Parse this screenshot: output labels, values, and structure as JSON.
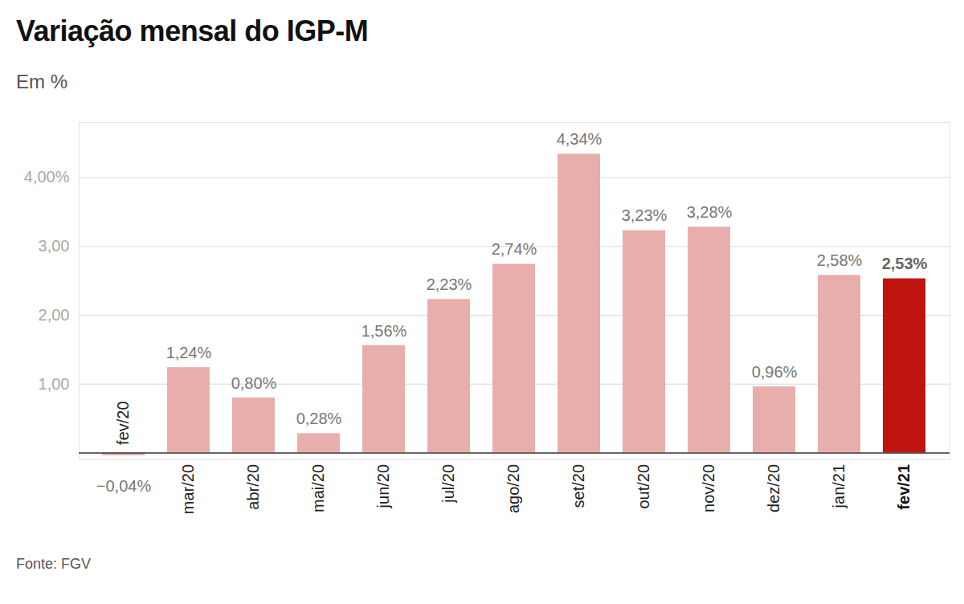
{
  "chart_data": {
    "type": "bar",
    "title": "Variação mensal do IGP-M",
    "subtitle": "Em %",
    "caption": "Fonte: FGV",
    "categories": [
      "fev/20",
      "mar/20",
      "abr/20",
      "mai/20",
      "jun/20",
      "jul/20",
      "ago/20",
      "set/20",
      "out/20",
      "nov/20",
      "dez/20",
      "jan/21",
      "fev/21"
    ],
    "values": [
      -0.04,
      1.24,
      0.8,
      0.28,
      1.56,
      2.23,
      2.74,
      4.34,
      3.23,
      3.28,
      0.96,
      2.58,
      2.53
    ],
    "value_labels": [
      "−0,04%",
      "1,24%",
      "0,80%",
      "0,28%",
      "1,56%",
      "2,23%",
      "2,74%",
      "4,34%",
      "3,23%",
      "3,28%",
      "0,96%",
      "2,58%",
      "2,53%"
    ],
    "colors": [
      "#e8aeab",
      "#e8aeab",
      "#e8aeab",
      "#e8aeab",
      "#e8aeab",
      "#e8aeab",
      "#e8aeab",
      "#e8aeab",
      "#e8aeab",
      "#e8aeab",
      "#e8aeab",
      "#e8aeab",
      "#c0150f"
    ],
    "ylim": [
      -0.1,
      4.8
    ],
    "yticks": [
      {
        "value": 1,
        "label": "1,00"
      },
      {
        "value": 2,
        "label": "2,00"
      },
      {
        "value": 3,
        "label": "3,00"
      },
      {
        "value": 4,
        "label": "4,00%"
      }
    ],
    "grid": true,
    "data_labels": true
  }
}
